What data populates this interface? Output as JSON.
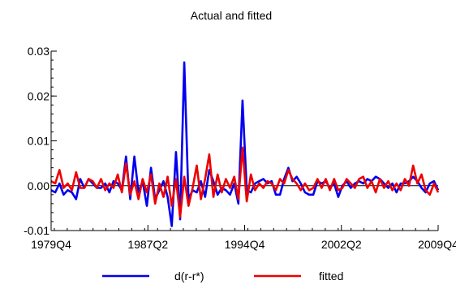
{
  "chart_data": {
    "type": "line",
    "title": "Actual and fitted",
    "xlabel": "",
    "ylabel": "",
    "x_ticks": [
      "1979Q4",
      "1987Q2",
      "1994Q4",
      "2002Q2",
      "2009Q4"
    ],
    "ylim": [
      -0.01,
      0.03
    ],
    "yticks": [
      -0.01,
      0.0,
      0.01,
      0.02,
      0.03
    ],
    "ytick_labels": [
      "-0.01",
      "0.00",
      "0.01",
      "0.02",
      "0.03"
    ],
    "grid": false,
    "legend": "bottom-center",
    "start": "1979Q4",
    "end": "2009Q4",
    "series": [
      {
        "name": "d(r-r*)",
        "color": "#0000ee",
        "values": [
          -0.001,
          -0.0015,
          0.0005,
          -0.002,
          -0.001,
          -0.0015,
          -0.003,
          0.0015,
          -0.0005,
          0.0015,
          0.0005,
          -0.0005,
          -0.0005,
          0.0005,
          -0.0015,
          0.001,
          0.0005,
          -0.001,
          0.0065,
          -0.003,
          0.0065,
          -0.0015,
          0.001,
          -0.0045,
          0.004,
          -0.003,
          -0.001,
          0.001,
          -0.0025,
          -0.009,
          0.0075,
          -0.0075,
          0.0275,
          -0.003,
          -0.001,
          -0.0015,
          0.001,
          -0.0025,
          0.0035,
          0.001,
          -0.002,
          -0.0005,
          -0.001,
          -0.002,
          0.0005,
          -0.004,
          0.019,
          -0.001,
          -0.0015,
          0.0005,
          0.001,
          0.0015,
          0.0005,
          0.001,
          -0.002,
          -0.002,
          0.0015,
          0.004,
          0.001,
          0.002,
          0.0005,
          -0.0015,
          -0.002,
          -0.002,
          0.001,
          0.0005,
          0.001,
          -0.0005,
          0.0005,
          -0.0025,
          0.0,
          0.001,
          -0.0005,
          0.0005,
          0.001,
          0.0005,
          0.0015,
          0.001,
          0.002,
          0.0015,
          0.0005,
          -0.0005,
          0.0005,
          -0.0015,
          0.0005,
          0.0005,
          0.001,
          0.002,
          0.001,
          -0.0005,
          -0.0015,
          0.0005,
          0.001,
          -0.001
        ]
      },
      {
        "name": "fitted",
        "color": "#ee0000",
        "values": [
          0.001,
          0.0005,
          0.0035,
          -0.0005,
          0.0005,
          -0.001,
          0.003,
          -0.0005,
          -0.0005,
          0.0015,
          0.001,
          -0.0005,
          0.0015,
          -0.001,
          0.0005,
          -0.0005,
          0.0025,
          -0.0015,
          0.005,
          -0.002,
          0.001,
          -0.003,
          0.0015,
          -0.0015,
          0.0025,
          -0.004,
          0.0005,
          -0.0025,
          0.002,
          -0.0045,
          0.0015,
          -0.007,
          0.002,
          -0.0045,
          -0.0005,
          0.0045,
          -0.003,
          0.0015,
          0.007,
          -0.0025,
          0.0025,
          -0.0015,
          0.0015,
          -0.0005,
          0.002,
          -0.003,
          0.0085,
          -0.0035,
          0.0025,
          -0.001,
          0.0005,
          -0.0005,
          0.001,
          0.0005,
          -0.001,
          0.0015,
          0.0005,
          0.0035,
          0.0015,
          0.0005,
          -0.001,
          0.0005,
          -0.001,
          -0.0005,
          0.0015,
          -0.0005,
          0.0015,
          -0.001,
          0.0015,
          -0.001,
          -0.0005,
          0.0015,
          0.0005,
          -0.0005,
          0.0015,
          0.002,
          -0.0005,
          0.001,
          -0.0015,
          0.0015,
          -0.0005,
          0.001,
          -0.001,
          0.0005,
          -0.001,
          0.0015,
          0.0,
          0.0045,
          0.0005,
          0.0025,
          -0.001,
          -0.002,
          0.0005,
          -0.0015
        ]
      }
    ]
  }
}
